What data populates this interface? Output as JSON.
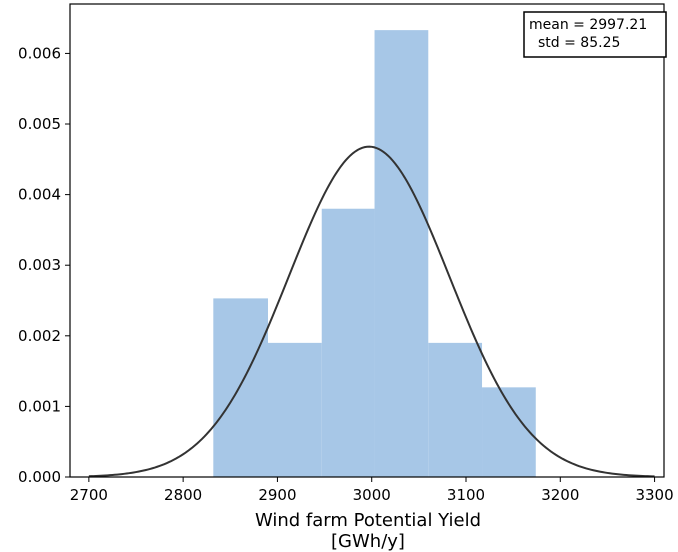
{
  "chart_data": {
    "type": "bar",
    "xlabel_line1": "Wind farm Potential Yield",
    "xlabel_line2": "[GWh/y]",
    "ylabel": "",
    "xlim": [
      2680,
      3310
    ],
    "ylim": [
      0,
      0.0067
    ],
    "xticks": [
      2700,
      2800,
      2900,
      3000,
      3100,
      3200,
      3300
    ],
    "yticks": [
      0.0,
      0.001,
      0.002,
      0.003,
      0.004,
      0.005,
      0.006
    ],
    "ytick_labels": [
      "0.000",
      "0.001",
      "0.002",
      "0.003",
      "0.004",
      "0.005",
      "0.006"
    ],
    "histogram": {
      "bin_edges": [
        2832,
        2890,
        2947,
        3003,
        3060,
        3117,
        3174
      ],
      "densities": [
        0.00253,
        0.0019,
        0.0038,
        0.00633,
        0.0019,
        0.00127
      ],
      "color": "#a7c7e7"
    },
    "normal_fit": {
      "mean": 2997.21,
      "std": 85.25,
      "x_range": [
        2700,
        3300
      ],
      "color": "#333333"
    },
    "stats_box": {
      "line1": "mean = 2997.21",
      "line2": "std = 85.25",
      "position": "top-right"
    },
    "grid": false,
    "legend": "none"
  }
}
